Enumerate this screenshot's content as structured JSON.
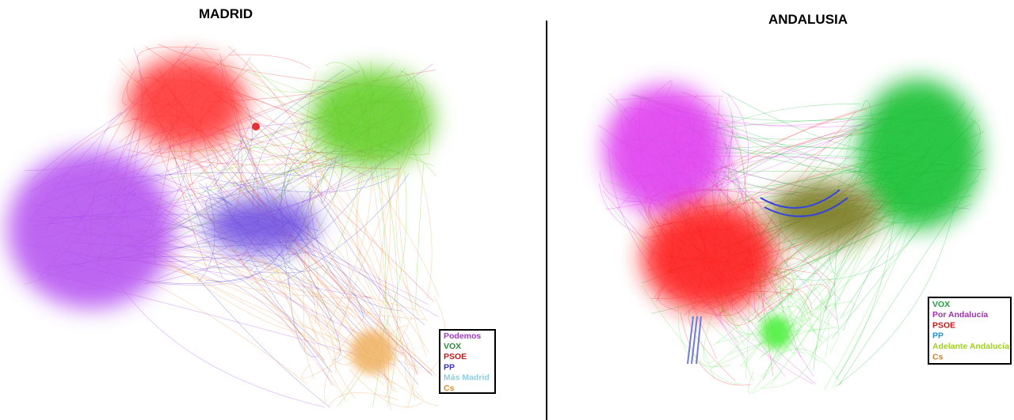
{
  "panels": [
    {
      "title": "MADRID",
      "legend": [
        {
          "label": "Podemos",
          "color": "#a03cc0"
        },
        {
          "label": "VOX",
          "color": "#2e8b3a"
        },
        {
          "label": "PSOE",
          "color": "#c01818"
        },
        {
          "label": "PP",
          "color": "#3a30c0"
        },
        {
          "label": "Más Madrid",
          "color": "#8ccfe0"
        },
        {
          "label": "Cs",
          "color": "#e08a2e"
        }
      ]
    },
    {
      "title": "ANDALUSIA",
      "legend": [
        {
          "label": "VOX",
          "color": "#20a040"
        },
        {
          "label": "Por Andalucía",
          "color": "#a030b0"
        },
        {
          "label": "PSOE",
          "color": "#c01818"
        },
        {
          "label": "PP",
          "color": "#2090d0"
        },
        {
          "label": "Adelante Andalucía",
          "color": "#a0d020"
        },
        {
          "label": "Cs",
          "color": "#d08030"
        }
      ]
    }
  ]
}
